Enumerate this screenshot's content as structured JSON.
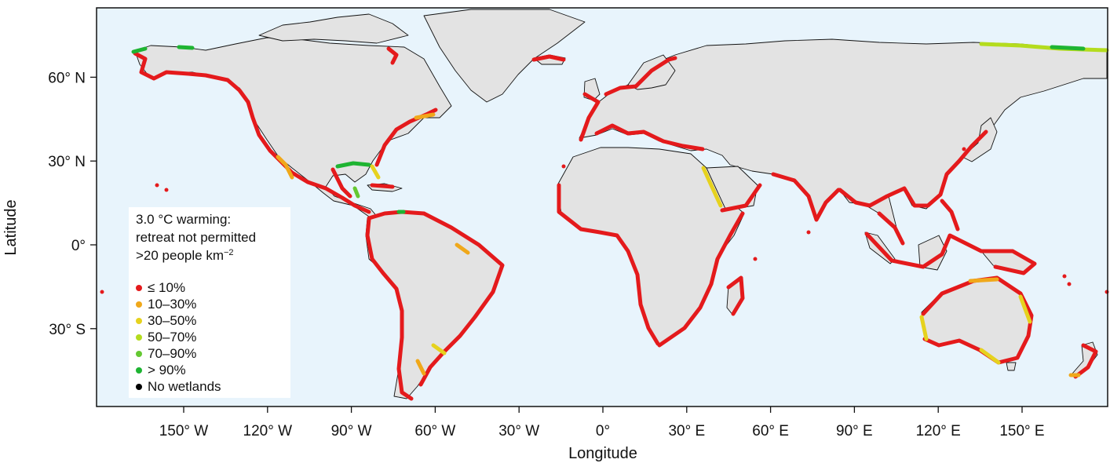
{
  "axes": {
    "xlabel": "Longitude",
    "ylabel": "Latitude",
    "x_ticks": [
      {
        "lon": -150,
        "label": "150° W"
      },
      {
        "lon": -120,
        "label": "120° W"
      },
      {
        "lon": -90,
        "label": "90° W"
      },
      {
        "lon": -60,
        "label": "60° W"
      },
      {
        "lon": -30,
        "label": "30° W"
      },
      {
        "lon": 0,
        "label": "0°"
      },
      {
        "lon": 30,
        "label": "30° E"
      },
      {
        "lon": 60,
        "label": "60° E"
      },
      {
        "lon": 90,
        "label": "90° E"
      },
      {
        "lon": 120,
        "label": "120° E"
      },
      {
        "lon": 150,
        "label": "150° E"
      }
    ],
    "y_ticks": [
      {
        "lat": 60,
        "label": "60° N"
      },
      {
        "lat": 30,
        "label": "30° N"
      },
      {
        "lat": 0,
        "label": "0°"
      },
      {
        "lat": -30,
        "label": "30° S"
      }
    ],
    "lon_range": [
      -180,
      180
    ],
    "lat_range": [
      -58,
      84
    ]
  },
  "legend": {
    "title_line1": "3.0 °C warming:",
    "title_line2": "retreat not permitted",
    "title_line3_prefix": ">20 people km",
    "title_line3_sup": "−2",
    "items": [
      {
        "label": "≤ 10%",
        "color": "#e41a1c"
      },
      {
        "label": "10–30%",
        "color": "#f0a81a"
      },
      {
        "label": "30–50%",
        "color": "#e6d21e"
      },
      {
        "label": "50–70%",
        "color": "#b4dc1e"
      },
      {
        "label": "70–90%",
        "color": "#64c832"
      },
      {
        "label": "> 90%",
        "color": "#1eb432"
      },
      {
        "label": "No wetlands",
        "color": "#000000"
      }
    ]
  },
  "colors": {
    "ocean": "#e8f4fc",
    "land": "#e3e3e3",
    "coast_low": "#e41a1c",
    "coast_mid": "#f0a81a",
    "coast_yellow": "#e6d21e",
    "coast_lime": "#b4dc1e",
    "coast_green": "#64c832",
    "coast_dark_green": "#1eb432"
  }
}
